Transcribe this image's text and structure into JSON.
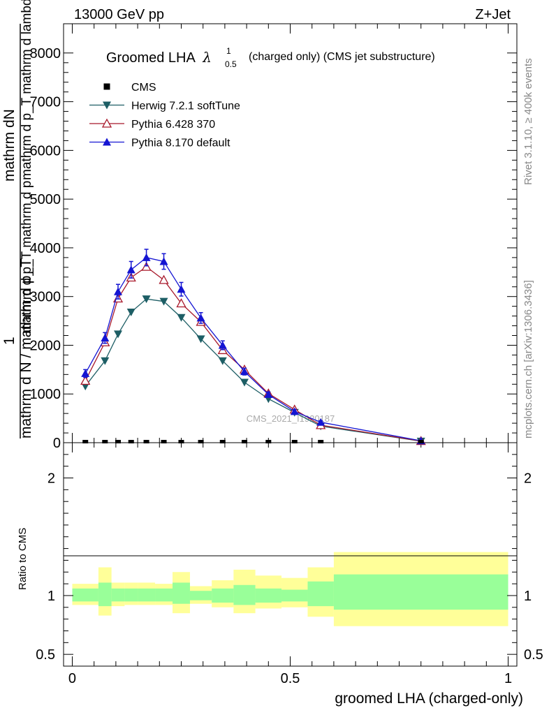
{
  "header": {
    "left": "13000 GeV pp",
    "right": "Z+Jet",
    "side_rivet": "Rivet 3.1.10, ≥ 400k events",
    "side_mcplots": "mcplots.cern.ch [arXiv:1306.3436]",
    "watermark": "CMS_2021_I1920187"
  },
  "chart_data": {
    "type": "line",
    "title_main": "Groomed LHA",
    "title_lambda": "λ",
    "title_sub": "0.5",
    "title_sup": "1",
    "title_rest": "(charged only) (CMS jet substructure)",
    "ylabel_top_1": "mathrm dN",
    "ylabel_top_2": "mathrm d p_T mathrm d lambda",
    "ylabel_one": "1",
    "ylabel_bottom": "mathrm d N / mathrm d p_T",
    "ylabel_mid": "mathrm d p_T mathrm d p",
    "xlabel": "groomed LHA (charged-only)",
    "ratio_ylabel": "Ratio to CMS",
    "xlim": [
      -0.02,
      1.02
    ],
    "ylim": [
      0,
      8600
    ],
    "yticks": [
      0,
      1000,
      2000,
      3000,
      4000,
      5000,
      6000,
      7000,
      8000
    ],
    "ytick_labels": [
      "0",
      "1000",
      "2000",
      "3000",
      "4000",
      "5000",
      "6000",
      "7000",
      "8000"
    ],
    "xticks": [
      0,
      0.5,
      1
    ],
    "xtick_labels": [
      "0",
      "0.5",
      "1"
    ],
    "ratio_ylim": [
      0.4,
      2.3
    ],
    "ratio_ticks": [
      0.5,
      1,
      2
    ],
    "ratio_tick_labels": [
      "0.5",
      "1",
      "2"
    ],
    "legend": [
      "CMS",
      "Herwig 7.2.1 softTune",
      "Pythia 6.428 370",
      "Pythia 8.170 default"
    ],
    "x": [
      0.03,
      0.075,
      0.105,
      0.135,
      0.17,
      0.21,
      0.25,
      0.295,
      0.345,
      0.395,
      0.45,
      0.51,
      0.57,
      0.8
    ],
    "cms_y": [
      0,
      0,
      0,
      0,
      0,
      0,
      0,
      0,
      0,
      0,
      0,
      0,
      0,
      0
    ],
    "series": [
      {
        "name": "Herwig 7.2.1 softTune",
        "color": "#1d5e65",
        "marker": "tri-down",
        "values": [
          1160,
          1680,
          2230,
          2680,
          2950,
          2900,
          2570,
          2130,
          1680,
          1240,
          900,
          620,
          340,
          30
        ]
      },
      {
        "name": "Pythia 6.428 370",
        "color": "#a8182a",
        "marker": "tri-up-open",
        "values": [
          1270,
          2060,
          2960,
          3390,
          3610,
          3340,
          2860,
          2480,
          1900,
          1500,
          1010,
          680,
          360,
          35
        ]
      },
      {
        "name": "Pythia 8.170 default",
        "color": "#1414d2",
        "marker": "tri-up",
        "values": [
          1420,
          2150,
          3100,
          3550,
          3800,
          3720,
          3150,
          2560,
          2000,
          1460,
          990,
          640,
          420,
          40
        ]
      }
    ],
    "err_p8": [
      80,
      110,
      150,
      170,
      170,
      160,
      140,
      110,
      90,
      70,
      50,
      40,
      30,
      10
    ],
    "ratio_bins": [
      {
        "lo": 0.0,
        "hi": 0.06,
        "g_lo": 0.95,
        "g_hi": 1.06,
        "y_lo": 0.92,
        "y_hi": 1.1
      },
      {
        "lo": 0.06,
        "hi": 0.09,
        "g_lo": 0.91,
        "g_hi": 1.11,
        "y_lo": 0.83,
        "y_hi": 1.24
      },
      {
        "lo": 0.09,
        "hi": 0.12,
        "g_lo": 0.95,
        "g_hi": 1.06,
        "y_lo": 0.91,
        "y_hi": 1.11
      },
      {
        "lo": 0.12,
        "hi": 0.15,
        "g_lo": 0.95,
        "g_hi": 1.06,
        "y_lo": 0.92,
        "y_hi": 1.11
      },
      {
        "lo": 0.15,
        "hi": 0.19,
        "g_lo": 0.95,
        "g_hi": 1.06,
        "y_lo": 0.92,
        "y_hi": 1.11
      },
      {
        "lo": 0.19,
        "hi": 0.23,
        "g_lo": 0.95,
        "g_hi": 1.06,
        "y_lo": 0.92,
        "y_hi": 1.1
      },
      {
        "lo": 0.23,
        "hi": 0.27,
        "g_lo": 0.93,
        "g_hi": 1.11,
        "y_lo": 0.85,
        "y_hi": 1.2
      },
      {
        "lo": 0.27,
        "hi": 0.32,
        "g_lo": 0.96,
        "g_hi": 1.04,
        "y_lo": 0.93,
        "y_hi": 1.08
      },
      {
        "lo": 0.32,
        "hi": 0.37,
        "g_lo": 0.94,
        "g_hi": 1.06,
        "y_lo": 0.9,
        "y_hi": 1.13
      },
      {
        "lo": 0.37,
        "hi": 0.42,
        "g_lo": 0.92,
        "g_hi": 1.09,
        "y_lo": 0.85,
        "y_hi": 1.22
      },
      {
        "lo": 0.42,
        "hi": 0.48,
        "g_lo": 0.94,
        "g_hi": 1.06,
        "y_lo": 0.89,
        "y_hi": 1.17
      },
      {
        "lo": 0.48,
        "hi": 0.54,
        "g_lo": 0.95,
        "g_hi": 1.05,
        "y_lo": 0.9,
        "y_hi": 1.15
      },
      {
        "lo": 0.54,
        "hi": 0.6,
        "g_lo": 0.91,
        "g_hi": 1.12,
        "y_lo": 0.82,
        "y_hi": 1.24
      },
      {
        "lo": 0.6,
        "hi": 1.0,
        "g_lo": 0.88,
        "g_hi": 1.18,
        "y_lo": 0.74,
        "y_hi": 1.37
      }
    ]
  }
}
